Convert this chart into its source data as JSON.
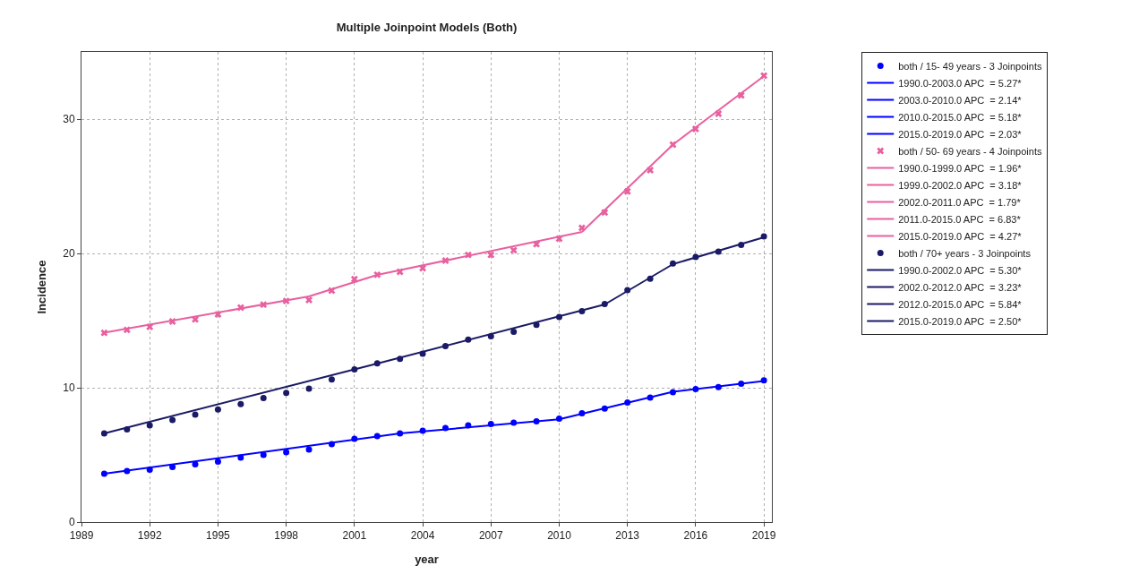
{
  "chart_data": {
    "type": "line",
    "title": "Multiple Joinpoint Models (Both)",
    "xlabel": "year",
    "ylabel": "Incidence",
    "xlim": [
      1989,
      2019.35
    ],
    "xticks": [
      1989,
      1992,
      1995,
      1998,
      2001,
      2004,
      2007,
      2010,
      2013,
      2016,
      2019
    ],
    "ylim": [
      0,
      35
    ],
    "yticks": [
      0,
      10,
      20,
      30
    ],
    "grid": true,
    "legend": "top right",
    "series": [
      {
        "name": "both / 15- 49 years - 3 Joinpoints",
        "type": "scatter",
        "marker": "circle",
        "color": "#0000ff",
        "x": [
          1990,
          1991,
          1992,
          1993,
          1994,
          1995,
          1996,
          1997,
          1998,
          1999,
          2000,
          2001,
          2002,
          2003,
          2004,
          2005,
          2006,
          2007,
          2008,
          2009,
          2010,
          2011,
          2012,
          2013,
          2014,
          2015,
          2016,
          2017,
          2018,
          2019
        ],
        "values": [
          3.6,
          3.8,
          3.9,
          4.1,
          4.3,
          4.5,
          4.8,
          5.0,
          5.2,
          5.4,
          5.8,
          6.2,
          6.4,
          6.6,
          6.8,
          7.0,
          7.2,
          7.3,
          7.4,
          7.5,
          7.7,
          8.1,
          8.45,
          8.9,
          9.27,
          9.67,
          9.9,
          10.05,
          10.3,
          10.55
        ]
      },
      {
        "name": "1990.0-2003.0 APC  = 5.27*",
        "color": "#0000ff",
        "x": [
          1990,
          2003
        ],
        "values": [
          3.6,
          6.6
        ]
      },
      {
        "name": "2003.0-2010.0 APC  = 2.14*",
        "color": "#0000ff",
        "x": [
          2003,
          2010
        ],
        "values": [
          6.6,
          7.65
        ]
      },
      {
        "name": "2010.0-2015.0 APC  = 5.18*",
        "color": "#0000ff",
        "x": [
          2010,
          2015
        ],
        "values": [
          7.65,
          9.7
        ]
      },
      {
        "name": "2015.0-2019.0 APC  = 2.03*",
        "color": "#0000ff",
        "x": [
          2015,
          2019
        ],
        "values": [
          9.7,
          10.5
        ]
      },
      {
        "name": "both / 50- 69 years - 4 Joinpoints",
        "type": "scatter",
        "marker": "cross",
        "color": "#e8609f",
        "x": [
          1990,
          1991,
          1992,
          1993,
          1994,
          1995,
          1996,
          1997,
          1998,
          1999,
          2000,
          2001,
          2002,
          2003,
          2004,
          2005,
          2006,
          2007,
          2008,
          2009,
          2010,
          2011,
          2012,
          2013,
          2014,
          2015,
          2016,
          2017,
          2018,
          2019
        ],
        "values": [
          14.09,
          14.31,
          14.53,
          14.93,
          15.09,
          15.46,
          15.97,
          16.19,
          16.46,
          16.53,
          17.23,
          18.08,
          18.41,
          18.63,
          18.9,
          19.47,
          19.89,
          19.89,
          20.24,
          20.69,
          21.1,
          21.9,
          23.05,
          24.62,
          26.2,
          28.1,
          29.27,
          30.4,
          31.77,
          33.23
        ]
      },
      {
        "name": "1990.0-1999.0 APC  = 1.96*",
        "color": "#e8609f",
        "x": [
          1990,
          1999
        ],
        "values": [
          14.1,
          16.8
        ]
      },
      {
        "name": "1999.0-2002.0 APC  = 3.18*",
        "color": "#e8609f",
        "x": [
          1999,
          2002
        ],
        "values": [
          16.8,
          18.4
        ]
      },
      {
        "name": "2002.0-2011.0 APC  = 1.79*",
        "color": "#e8609f",
        "x": [
          2002,
          2011
        ],
        "values": [
          18.4,
          21.6
        ]
      },
      {
        "name": "2011.0-2015.0 APC  = 6.83*",
        "color": "#e8609f",
        "x": [
          2011,
          2015
        ],
        "values": [
          21.6,
          28.1
        ]
      },
      {
        "name": "2015.0-2019.0 APC  = 4.27*",
        "color": "#e8609f",
        "x": [
          2015,
          2019
        ],
        "values": [
          28.1,
          33.2
        ]
      },
      {
        "name": "both / 70+ years - 3 Joinpoints",
        "type": "scatter",
        "marker": "circle",
        "color": "#1a1a66",
        "x": [
          1990,
          1991,
          1992,
          1993,
          1994,
          1995,
          1996,
          1997,
          1998,
          1999,
          2000,
          2001,
          2002,
          2003,
          2004,
          2005,
          2006,
          2007,
          2008,
          2009,
          2010,
          2011,
          2012,
          2013,
          2014,
          2015,
          2016,
          2017,
          2018,
          2019
        ],
        "values": [
          6.6,
          6.9,
          7.2,
          7.6,
          8.0,
          8.38,
          8.78,
          9.23,
          9.62,
          9.93,
          10.62,
          11.37,
          11.81,
          12.15,
          12.54,
          13.1,
          13.58,
          13.83,
          14.16,
          14.69,
          15.27,
          15.7,
          16.24,
          17.26,
          18.12,
          19.25,
          19.73,
          20.13,
          20.64,
          21.26
        ]
      },
      {
        "name": "1990.0-2002.0 APC  = 5.30*",
        "color": "#1a1a66",
        "x": [
          1990,
          2002
        ],
        "values": [
          6.6,
          11.8
        ]
      },
      {
        "name": "2002.0-2012.0 APC  = 3.23*",
        "color": "#1a1a66",
        "x": [
          2002,
          2012
        ],
        "values": [
          11.8,
          16.2
        ]
      },
      {
        "name": "2012.0-2015.0 APC  = 5.84*",
        "color": "#1a1a66",
        "x": [
          2012,
          2015
        ],
        "values": [
          16.2,
          19.2
        ]
      },
      {
        "name": "2015.0-2019.0 APC  = 2.50*",
        "color": "#1a1a66",
        "x": [
          2015,
          2019
        ],
        "values": [
          19.2,
          21.2
        ]
      }
    ]
  }
}
